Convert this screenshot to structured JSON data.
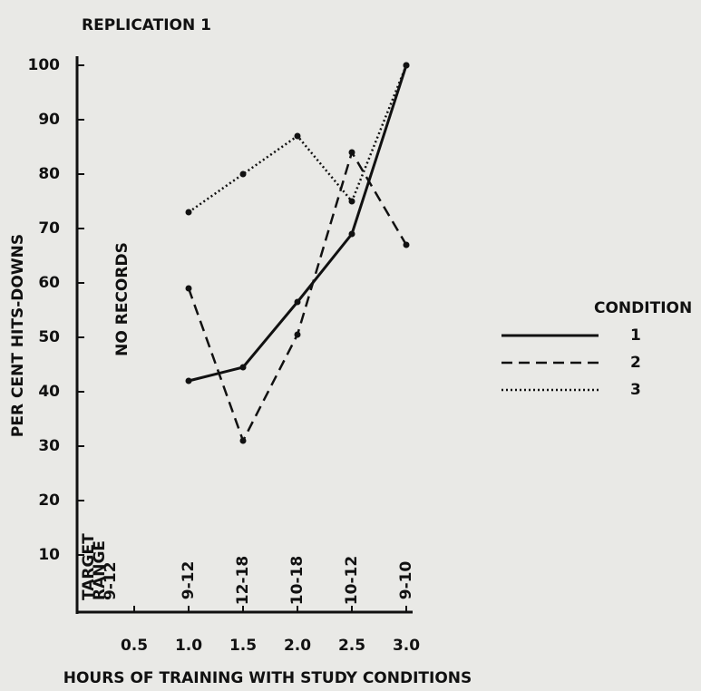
{
  "chart_data": {
    "type": "line",
    "title": "REPLICATION 1",
    "ylabel": "PER CENT HITS-DOWNS",
    "xlabel": "HOURS OF TRAINING WITH STUDY CONDITIONS",
    "x": [
      1.0,
      1.5,
      2.0,
      2.5,
      3.0
    ],
    "series": [
      {
        "name": "1",
        "color": "#111111",
        "dash": "solid",
        "values": [
          42,
          44.5,
          56.5,
          69,
          100
        ]
      },
      {
        "name": "2",
        "color": "#111111",
        "dash": "dashed",
        "values": [
          59,
          31,
          50.5,
          84,
          67
        ]
      },
      {
        "name": "3",
        "color": "#111111",
        "dash": "dotted",
        "values": [
          73,
          80,
          87,
          75,
          100
        ]
      }
    ],
    "legend_title": "CONDITION",
    "legend": "right",
    "xlim": [
      0,
      3.0
    ],
    "xticks": [
      0.5,
      {
        "value": 1,
        "label": "1.0"
      },
      1.5,
      {
        "value": 2,
        "label": "2.0"
      },
      2.5,
      {
        "value": 3,
        "label": "3.0"
      }
    ],
    "ylim": [
      0,
      100
    ],
    "yticks": [
      10,
      20,
      30,
      40,
      50,
      60,
      70,
      80,
      90,
      100
    ],
    "annotation": "NO RECORDS",
    "target_range_title": [
      "TARGET",
      "RANGE"
    ],
    "target_range": "9-12",
    "range_labels": [
      "9-12",
      "12-18",
      "10-18",
      "10-12",
      "9-10"
    ]
  }
}
